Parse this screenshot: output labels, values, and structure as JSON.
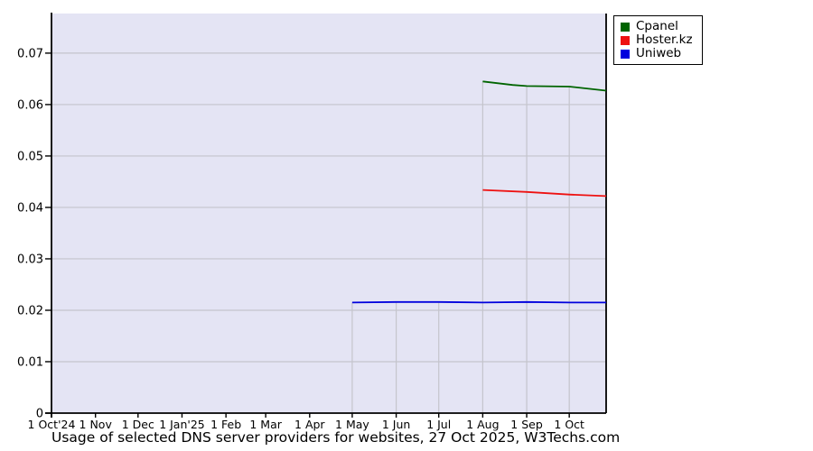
{
  "chart_data": {
    "type": "line",
    "title": "Usage of selected DNS server providers for websites, 27 Oct 2025, W3Techs.com",
    "x_axis": {
      "start_date": "2024-10-01",
      "end_date": "2025-10-27",
      "tick_dates": [
        "2024-10-01",
        "2024-11-01",
        "2024-12-01",
        "2025-01-01",
        "2025-02-01",
        "2025-03-01",
        "2025-04-01",
        "2025-05-01",
        "2025-06-01",
        "2025-07-01",
        "2025-08-01",
        "2025-09-01",
        "2025-10-01"
      ],
      "tick_labels": [
        "1 Oct'24",
        "1 Nov",
        "1 Dec",
        "1 Jan'25",
        "1 Feb",
        "1 Mar",
        "1 Apr",
        "1 May",
        "1 Jun",
        "1 Jul",
        "1 Aug",
        "1 Sep",
        "1 Oct"
      ]
    },
    "y_axis": {
      "min": 0,
      "max": 0.0777,
      "tick_values": [
        0,
        0.01,
        0.02,
        0.03,
        0.04,
        0.05,
        0.06,
        0.07
      ],
      "tick_labels": [
        "0",
        "0.01",
        "0.02",
        "0.03",
        "0.04",
        "0.05",
        "0.06",
        "0.07"
      ]
    },
    "series": [
      {
        "name": "Cpanel",
        "color": "#006400",
        "points": [
          {
            "date": "2025-08-01",
            "value": 0.0645
          },
          {
            "date": "2025-08-22",
            "value": 0.0638
          },
          {
            "date": "2025-09-01",
            "value": 0.0636
          },
          {
            "date": "2025-10-01",
            "value": 0.0635
          },
          {
            "date": "2025-10-27",
            "value": 0.0627
          }
        ]
      },
      {
        "name": "Hoster.kz",
        "color": "#ee1111",
        "points": [
          {
            "date": "2025-08-01",
            "value": 0.0434
          },
          {
            "date": "2025-09-01",
            "value": 0.043
          },
          {
            "date": "2025-10-01",
            "value": 0.0425
          },
          {
            "date": "2025-10-27",
            "value": 0.0422
          }
        ]
      },
      {
        "name": "Uniweb",
        "color": "#0000dd",
        "points": [
          {
            "date": "2025-05-01",
            "value": 0.0215
          },
          {
            "date": "2025-06-01",
            "value": 0.0216
          },
          {
            "date": "2025-07-01",
            "value": 0.0216
          },
          {
            "date": "2025-08-01",
            "value": 0.0215
          },
          {
            "date": "2025-09-01",
            "value": 0.0216
          },
          {
            "date": "2025-10-01",
            "value": 0.0215
          },
          {
            "date": "2025-10-27",
            "value": 0.0215
          }
        ]
      }
    ],
    "legend": {
      "position": "outside-top-right",
      "entries": [
        "Cpanel",
        "Hoster.kz",
        "Uniweb"
      ]
    },
    "layout_hints": {
      "plot_background": "#e4e4f4",
      "grid_color": "#c4c4cc",
      "axis_color": "#000000",
      "legend_background": "#ffffff",
      "legend_border": "#000000",
      "horizontal_grid": "full width at each 0.01 step",
      "vertical_grid": "only from topmost data line down, at months where data exists"
    }
  }
}
